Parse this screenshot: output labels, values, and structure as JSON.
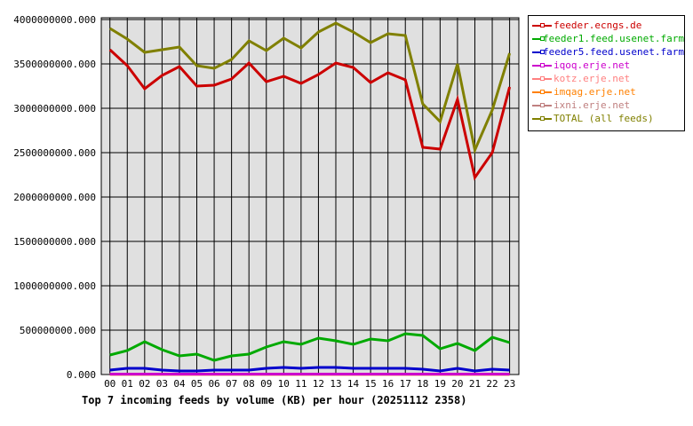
{
  "chart_data": {
    "type": "line",
    "title": "Top 7 incoming feeds by volume (KB) per hour (20251112 2358)",
    "xlabel": "",
    "ylabel": "",
    "categories": [
      "00",
      "01",
      "02",
      "03",
      "04",
      "05",
      "06",
      "07",
      "08",
      "09",
      "10",
      "11",
      "12",
      "13",
      "14",
      "15",
      "16",
      "17",
      "18",
      "19",
      "20",
      "21",
      "22",
      "23"
    ],
    "ylim": [
      0,
      4000000000
    ],
    "yticks": [
      "0.000",
      "500000000.000",
      "1000000000.000",
      "1500000000.000",
      "2000000000.000",
      "2500000000.000",
      "3000000000.000",
      "3500000000.000",
      "4000000000.000"
    ],
    "grid": true,
    "legend": "right",
    "series": [
      {
        "name": "feeder.ecngs.de",
        "color": "#cc0000",
        "values": [
          3660000000,
          3480000000,
          3220000000,
          3370000000,
          3470000000,
          3250000000,
          3260000000,
          3330000000,
          3510000000,
          3300000000,
          3360000000,
          3280000000,
          3380000000,
          3510000000,
          3460000000,
          3290000000,
          3400000000,
          3320000000,
          2560000000,
          2540000000,
          3100000000,
          2220000000,
          2500000000,
          3240000000
        ]
      },
      {
        "name": "feeder1.feed.usenet.farm",
        "color": "#00aa00",
        "values": [
          220000000,
          270000000,
          370000000,
          280000000,
          210000000,
          230000000,
          160000000,
          210000000,
          230000000,
          310000000,
          370000000,
          340000000,
          410000000,
          380000000,
          340000000,
          400000000,
          380000000,
          460000000,
          440000000,
          290000000,
          350000000,
          270000000,
          420000000,
          360000000
        ]
      },
      {
        "name": "feeder5.feed.usenet.farm",
        "color": "#0000cc",
        "values": [
          50000000,
          70000000,
          70000000,
          50000000,
          40000000,
          40000000,
          50000000,
          50000000,
          50000000,
          70000000,
          80000000,
          70000000,
          80000000,
          80000000,
          70000000,
          70000000,
          70000000,
          70000000,
          60000000,
          40000000,
          70000000,
          40000000,
          60000000,
          50000000
        ]
      },
      {
        "name": "iqoq.erje.net",
        "color": "#cc00cc",
        "values": [
          5000000,
          5000000,
          5000000,
          5000000,
          5000000,
          5000000,
          5000000,
          5000000,
          5000000,
          5000000,
          5000000,
          5000000,
          5000000,
          5000000,
          5000000,
          5000000,
          5000000,
          5000000,
          5000000,
          5000000,
          5000000,
          5000000,
          5000000,
          5000000
        ]
      },
      {
        "name": "kotz.erje.net",
        "color": "#ff8080",
        "values": [
          4000000,
          4000000,
          4000000,
          4000000,
          4000000,
          4000000,
          4000000,
          4000000,
          4000000,
          4000000,
          4000000,
          4000000,
          4000000,
          4000000,
          4000000,
          4000000,
          4000000,
          4000000,
          4000000,
          4000000,
          4000000,
          4000000,
          4000000,
          4000000
        ]
      },
      {
        "name": "imqag.erje.net",
        "color": "#ff8000",
        "values": [
          3000000,
          3000000,
          3000000,
          3000000,
          3000000,
          3000000,
          3000000,
          3000000,
          3000000,
          3000000,
          3000000,
          3000000,
          3000000,
          3000000,
          3000000,
          3000000,
          3000000,
          3000000,
          3000000,
          3000000,
          3000000,
          3000000,
          3000000,
          3000000
        ]
      },
      {
        "name": "ixni.erje.net",
        "color": "#c08080",
        "values": [
          2000000,
          2000000,
          2000000,
          2000000,
          2000000,
          2000000,
          2000000,
          2000000,
          2000000,
          2000000,
          2000000,
          2000000,
          2000000,
          2000000,
          2000000,
          2000000,
          2000000,
          2000000,
          2000000,
          2000000,
          2000000,
          2000000,
          2000000,
          2000000
        ]
      },
      {
        "name": "TOTAL (all feeds)",
        "color": "#808000",
        "values": [
          3900000000,
          3780000000,
          3630000000,
          3660000000,
          3690000000,
          3480000000,
          3450000000,
          3550000000,
          3760000000,
          3650000000,
          3790000000,
          3680000000,
          3860000000,
          3960000000,
          3860000000,
          3740000000,
          3840000000,
          3820000000,
          3050000000,
          2850000000,
          3500000000,
          2530000000,
          2980000000,
          3620000000
        ]
      }
    ]
  }
}
